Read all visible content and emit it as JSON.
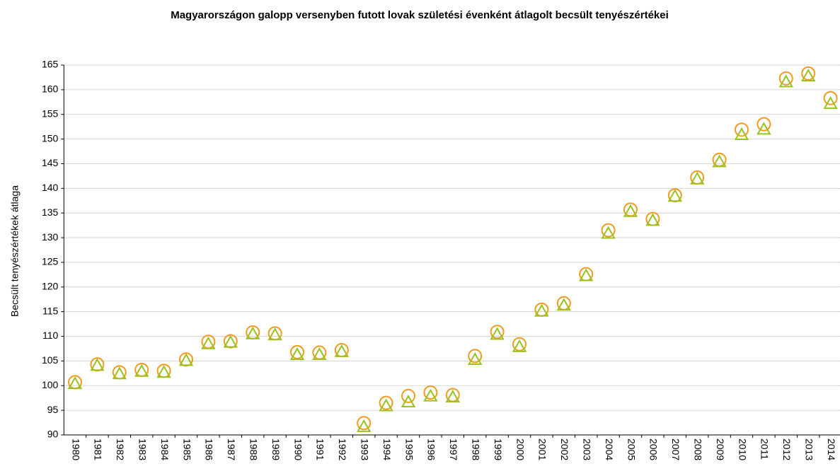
{
  "chart_data": {
    "type": "scatter",
    "title": "Magyarországon galopp versenyben futott lovak születési évenként átlagolt becsült tenyészértékei",
    "y_label": "Becsült tenyészértékek átlaga",
    "categories": [
      "1980",
      "1981",
      "1982",
      "1983",
      "1984",
      "1985",
      "1986",
      "1987",
      "1988",
      "1989",
      "1990",
      "1991",
      "1992",
      "1993",
      "1994",
      "1995",
      "1996",
      "1997",
      "1998",
      "1999",
      "2000",
      "2001",
      "2002",
      "2003",
      "2004",
      "2005",
      "2006",
      "2007",
      "2008",
      "2009",
      "2010",
      "2011",
      "2012",
      "2013",
      "2014"
    ],
    "series": [
      {
        "color": "#f59a1e",
        "marker": "circle",
        "values": [
          100.7,
          104.3,
          102.7,
          103.2,
          103.0,
          105.3,
          108.9,
          109.0,
          110.8,
          110.6,
          106.8,
          106.7,
          107.2,
          92.4,
          96.5,
          97.9,
          98.6,
          98.1,
          106.0,
          110.9,
          108.4,
          115.4,
          116.7,
          122.6,
          131.5,
          135.7,
          133.8,
          138.6,
          142.2,
          145.8,
          151.9,
          153.0,
          162.3,
          163.3,
          158.3
        ]
      },
      {
        "color": "#99c21c",
        "marker": "triangle",
        "values": [
          100.3,
          104.0,
          102.3,
          102.8,
          102.6,
          105.0,
          108.4,
          108.7,
          110.4,
          110.2,
          106.2,
          106.2,
          106.8,
          91.6,
          95.8,
          96.6,
          97.8,
          97.6,
          105.2,
          110.3,
          107.8,
          115.0,
          116.2,
          122.2,
          130.8,
          135.2,
          133.4,
          138.3,
          141.8,
          145.3,
          150.8,
          151.9,
          161.5,
          162.7,
          157.1
        ]
      }
    ],
    "ylim": [
      90,
      165
    ],
    "yticks": [
      90,
      95,
      100,
      105,
      110,
      115,
      120,
      125,
      130,
      135,
      140,
      145,
      150,
      155,
      160,
      165
    ],
    "grid": true
  }
}
